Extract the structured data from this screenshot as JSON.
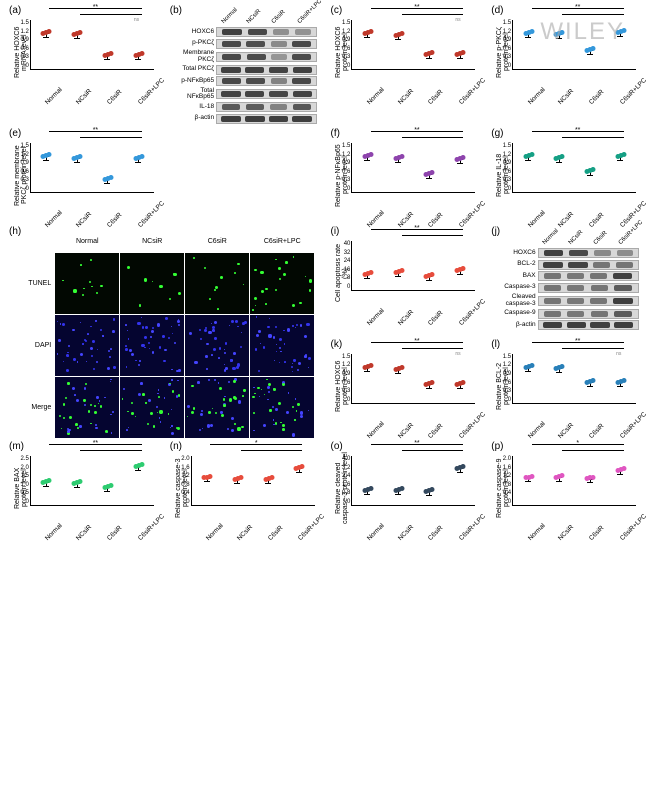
{
  "watermark": "WILEY",
  "x_categories": [
    "Normal",
    "NCsiR",
    "C6siR",
    "C6siR+LPC"
  ],
  "panels": {
    "a": {
      "label": "(a)",
      "ylabel": "Relative HOXC6\nmRNA level",
      "ylim": [
        0,
        1.5
      ],
      "yticks": [
        "0",
        "0.3",
        "0.6",
        "0.9",
        "1.2",
        "1.5"
      ],
      "values": [
        1.0,
        0.98,
        0.35,
        0.33
      ],
      "color": "#c0392b",
      "sig": "**",
      "sig2": "**",
      "ns": true
    },
    "b": {
      "label": "(b)",
      "type": "blot",
      "proteins": [
        "HOXC6",
        "p-PKCζ",
        "Membrane PKCζ",
        "Total PKCζ",
        "p-NFκBp65",
        "Total NFκBp65",
        "IL-18",
        "β-actin"
      ],
      "intensities": [
        [
          0.9,
          0.85,
          0.3,
          0.28
        ],
        [
          0.85,
          0.8,
          0.35,
          0.85
        ],
        [
          0.85,
          0.82,
          0.25,
          0.82
        ],
        [
          0.9,
          0.9,
          0.88,
          0.9
        ],
        [
          0.85,
          0.82,
          0.4,
          0.85
        ],
        [
          0.88,
          0.88,
          0.86,
          0.88
        ],
        [
          0.7,
          0.68,
          0.4,
          0.72
        ],
        [
          0.92,
          0.92,
          0.9,
          0.92
        ]
      ]
    },
    "c": {
      "label": "(c)",
      "ylabel": "Relative HOXC6\nprotein level",
      "ylim": [
        0,
        1.5
      ],
      "yticks": [
        "0",
        "0.3",
        "0.6",
        "0.9",
        "1.2",
        "1.5"
      ],
      "values": [
        1.0,
        0.96,
        0.38,
        0.36
      ],
      "color": "#c0392b",
      "sig": "**",
      "sig2": "**",
      "ns": true
    },
    "d": {
      "label": "(d)",
      "ylabel": "Relative p-PKCζ\nprotein level",
      "ylim": [
        0,
        1.5
      ],
      "yticks": [
        "0",
        "0.3",
        "0.6",
        "0.9",
        "1.2",
        "1.5"
      ],
      "values": [
        1.0,
        0.98,
        0.48,
        1.05
      ],
      "color": "#3498db",
      "sig": "**",
      "sig2": "**",
      "ns": false
    },
    "e": {
      "label": "(e)",
      "ylabel": "Relative membrane\nPKCζ protein level",
      "ylim": [
        0,
        1.5
      ],
      "yticks": [
        "0",
        "0.3",
        "0.6",
        "0.9",
        "1.2",
        "1.5"
      ],
      "values": [
        1.0,
        0.95,
        0.3,
        0.95
      ],
      "color": "#3498db",
      "sig": "**",
      "sig2": "**",
      "ns": false
    },
    "f": {
      "label": "(f)",
      "ylabel": "Relative p-NFκBp65\nprotein level",
      "ylim": [
        0,
        1.5
      ],
      "yticks": [
        "0",
        "0.3",
        "0.6",
        "0.9",
        "1.2",
        "1.5"
      ],
      "values": [
        1.0,
        0.95,
        0.45,
        0.92
      ],
      "color": "#8e44ad",
      "sig": "**",
      "sig2": "**",
      "ns": false
    },
    "g": {
      "label": "(g)",
      "ylabel": "Relative IL-18\nprotein level",
      "ylim": [
        0,
        1.5
      ],
      "yticks": [
        "0",
        "0.3",
        "0.6",
        "0.9",
        "1.2",
        "1.5"
      ],
      "values": [
        1.0,
        0.96,
        0.55,
        1.0
      ],
      "color": "#16a085",
      "sig": "**",
      "sig2": "**",
      "ns": false
    },
    "h": {
      "label": "(h)",
      "type": "tunel",
      "rows": [
        "TUNEL",
        "DAPI",
        "Merge"
      ]
    },
    "i": {
      "label": "(i)",
      "ylabel": "Cell apoptosis rate\n(%)",
      "ylim": [
        0,
        40
      ],
      "yticks": [
        "0",
        "8",
        "16",
        "24",
        "32",
        "40"
      ],
      "values": [
        11,
        12,
        9,
        14
      ],
      "color": "#e74c3c",
      "sig": "**",
      "sig2": "**",
      "ns": false
    },
    "j": {
      "label": "(j)",
      "type": "blot",
      "proteins": [
        "HOXC6",
        "BCL-2",
        "BAX",
        "Caspase-3",
        "Cleaved caspase-3",
        "Caspase-9",
        "β-actin"
      ],
      "intensities": [
        [
          0.9,
          0.85,
          0.35,
          0.32
        ],
        [
          0.9,
          0.88,
          0.5,
          0.5
        ],
        [
          0.5,
          0.48,
          0.5,
          0.9
        ],
        [
          0.5,
          0.48,
          0.5,
          0.7
        ],
        [
          0.5,
          0.48,
          0.5,
          0.92
        ],
        [
          0.5,
          0.48,
          0.5,
          0.7
        ],
        [
          0.92,
          0.92,
          0.9,
          0.92
        ]
      ]
    },
    "k": {
      "label": "(k)",
      "ylabel": "Relative HOXC6\nprotein level",
      "ylim": [
        0,
        1.5
      ],
      "yticks": [
        "0",
        "0.3",
        "0.6",
        "0.9",
        "1.2",
        "1.5"
      ],
      "values": [
        1.0,
        0.95,
        0.48,
        0.48
      ],
      "color": "#c0392b",
      "sig": "**",
      "sig2": "**",
      "ns": true
    },
    "l": {
      "label": "(l)",
      "ylabel": "Relative BCL-2\nprotein level",
      "ylim": [
        0,
        1.5
      ],
      "yticks": [
        "0",
        "0.3",
        "0.6",
        "0.9",
        "1.2",
        "1.5"
      ],
      "values": [
        1.0,
        0.96,
        0.55,
        0.55
      ],
      "color": "#2980b9",
      "sig": "**",
      "sig2": "**",
      "ns": true
    },
    "m": {
      "label": "(m)",
      "ylabel": "Relative BAX\nprotein level",
      "ylim": [
        0,
        2.5
      ],
      "yticks": [
        "0",
        "0.5",
        "1.0",
        "1.5",
        "2.0",
        "2.5"
      ],
      "values": [
        1.0,
        0.95,
        0.78,
        1.85
      ],
      "color": "#2ecc71",
      "sig": "**",
      "sig2": "**",
      "ns": false
    },
    "n": {
      "label": "(n)",
      "ylabel": "Relative caspase-3\nprotein level",
      "ylim": [
        0,
        2.0
      ],
      "yticks": [
        "0",
        "0.4",
        "0.8",
        "1.2",
        "1.6",
        "2.0"
      ],
      "values": [
        1.0,
        0.93,
        0.95,
        1.4
      ],
      "color": "#e74c3c",
      "sig": "*",
      "sig2": "**",
      "ns": false
    },
    "o": {
      "label": "(o)",
      "ylabel": "Relative cleaved\ncaspase-3 protein level",
      "ylim": [
        0,
        4.0
      ],
      "yticks": [
        "0",
        "0.8",
        "1.6",
        "2.4",
        "3.2",
        "4.0"
      ],
      "values": [
        1.0,
        0.95,
        0.92,
        2.8
      ],
      "color": "#34495e",
      "sig": "**",
      "sig2": "**",
      "ns": false
    },
    "p": {
      "label": "(p)",
      "ylabel": "Relative caspase-9\nprotein level",
      "ylim": [
        0,
        2.0
      ],
      "yticks": [
        "0",
        "0.4",
        "0.8",
        "1.2",
        "1.6",
        "2.0"
      ],
      "values": [
        1.0,
        1.02,
        0.96,
        1.32
      ],
      "color": "#e056c1",
      "sig": "*",
      "sig2": "**",
      "ns": false
    }
  }
}
